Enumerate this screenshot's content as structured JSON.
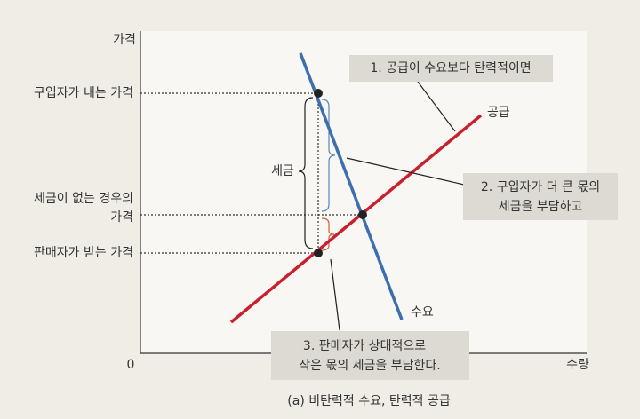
{
  "axes": {
    "y_label": "가격",
    "x_label": "수량",
    "origin": "0"
  },
  "curves": {
    "supply": "공급",
    "demand": "수요"
  },
  "price_labels": {
    "buyer": "구입자가 내는 가격",
    "no_tax_line1": "세금이 없는 경우의",
    "no_tax_line2": "가격",
    "seller": "판매자가 받는 가격"
  },
  "tax_label": "세금",
  "callouts": [
    {
      "lines": [
        "1. 공급이 수요보다 탄력적이면"
      ]
    },
    {
      "lines": [
        "2. 구입자가 더 큰 몫의",
        "세금을 부담하고"
      ]
    },
    {
      "lines": [
        "3. 판매자가 상대적으로",
        "작은 몫의 세금을 부담한다."
      ]
    }
  ],
  "caption": "(a) 비탄력적 수요, 탄력적 공급"
}
